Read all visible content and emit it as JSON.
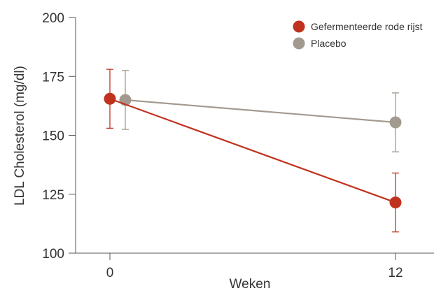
{
  "chart_data": {
    "type": "line",
    "title": "",
    "xlabel": "Weken",
    "ylabel": "LDL Cholesterol (mg/dl)",
    "x_categories": [
      "0",
      "12"
    ],
    "ylim": [
      100,
      200
    ],
    "yticks": [
      100,
      125,
      150,
      175,
      200
    ],
    "grid": false,
    "legend_position": "top-right",
    "series": [
      {
        "name": "Gefermenteerde rode rijst",
        "color": "#c0321f",
        "values": [
          165.5,
          121.5
        ],
        "error": [
          12.5,
          12.5
        ]
      },
      {
        "name": "Placebo",
        "color": "#a29a8e",
        "values": [
          165,
          155.5
        ],
        "error": [
          12.5,
          12.5
        ]
      }
    ]
  }
}
